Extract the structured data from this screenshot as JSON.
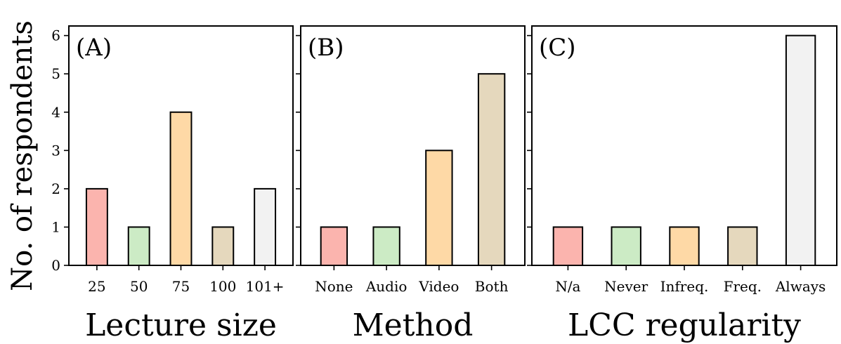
{
  "chart_data": [
    {
      "type": "bar",
      "panel_label": "(A)",
      "categories": [
        "25",
        "50",
        "75",
        "100",
        "101+"
      ],
      "values": [
        2,
        1,
        4,
        1,
        2
      ],
      "colors": [
        "#fbb4ae",
        "#ccebc5",
        "#fed9a6",
        "#e5d8bd",
        "#f2f2f2"
      ],
      "xlabel": "Lecture size",
      "ylabel": "No. of respondents",
      "ylim": [
        0,
        6.25
      ],
      "yticks": [
        0,
        1,
        2,
        3,
        4,
        5,
        6
      ],
      "grid": false
    },
    {
      "type": "bar",
      "panel_label": "(B)",
      "categories": [
        "None",
        "Audio",
        "Video",
        "Both"
      ],
      "values": [
        1,
        1,
        3,
        5
      ],
      "colors": [
        "#fbb4ae",
        "#ccebc5",
        "#fed9a6",
        "#e5d8bd"
      ],
      "xlabel": "Method",
      "ylim": [
        0,
        6.25
      ],
      "grid": false
    },
    {
      "type": "bar",
      "panel_label": "(C)",
      "categories": [
        "N/a",
        "Never",
        "Infreq.",
        "Freq.",
        "Always"
      ],
      "values": [
        1,
        1,
        1,
        1,
        6
      ],
      "colors": [
        "#fbb4ae",
        "#ccebc5",
        "#fed9a6",
        "#e5d8bd",
        "#f2f2f2"
      ],
      "xlabel": "LCC regularity",
      "ylim": [
        0,
        6.25
      ],
      "grid": false
    }
  ]
}
